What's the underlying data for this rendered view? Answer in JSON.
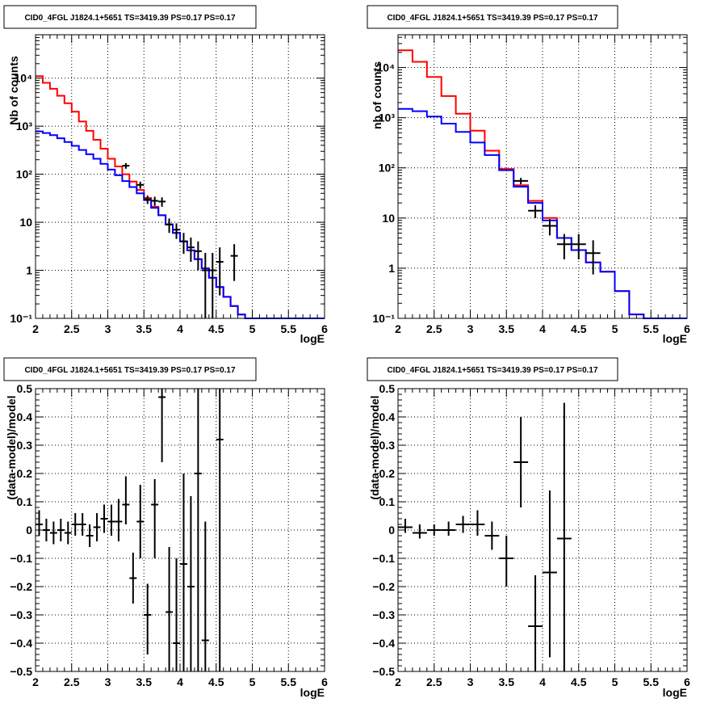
{
  "colors": {
    "model_total": "#ff0000",
    "model_component": "#0000ff",
    "data": "#000000",
    "grid": "#000000"
  },
  "chart_data": [
    {
      "type": "histogram",
      "title": "CID0_4FGL J1824.1+5651 TS=3419.39 PS=0.17 PS=0.17",
      "xlabel": "logE",
      "ylabel": "Nb of counts",
      "xlim": [
        2,
        6
      ],
      "ylim": [
        0.1,
        80000
      ],
      "yscale": "log",
      "grid": true,
      "xticks": [
        "2",
        "2.5",
        "3",
        "3.5",
        "4",
        "4.5",
        "5",
        "5.5",
        "6"
      ],
      "yticks": [
        {
          "value": 0.1,
          "label": "10⁻¹"
        },
        {
          "value": 1,
          "label": "1"
        },
        {
          "value": 10,
          "label": "10"
        },
        {
          "value": 100,
          "label": "10²"
        },
        {
          "value": 1000,
          "label": "10³"
        },
        {
          "value": 10000,
          "label": "10⁴"
        }
      ],
      "bin_edges": [
        2.0,
        2.1,
        2.2,
        2.3,
        2.4,
        2.5,
        2.6,
        2.7,
        2.8,
        2.9,
        3.0,
        3.1,
        3.2,
        3.3,
        3.4,
        3.5,
        3.6,
        3.7,
        3.8,
        3.9,
        4.0,
        4.1,
        4.2,
        4.3,
        4.4,
        4.5,
        4.6,
        4.7,
        4.8,
        4.9,
        5.0,
        5.1,
        5.2,
        5.3,
        5.4,
        5.5,
        5.6,
        5.7,
        5.8,
        5.9,
        6.0
      ],
      "series": [
        {
          "kind": "step",
          "color_key": "model_total",
          "values": [
            11000,
            8000,
            6000,
            4300,
            3000,
            2000,
            1250,
            800,
            520,
            340,
            210,
            145,
            100,
            70,
            47,
            32,
            21,
            14,
            9,
            6,
            4,
            2.6,
            1.7,
            1.1,
            0.7,
            0.45,
            0.28,
            0.18,
            0.12,
            0.1,
            0.1,
            0.1,
            0.1,
            0.1,
            0.1,
            0.1,
            0.1,
            0.1,
            0.1,
            0.1
          ]
        },
        {
          "kind": "step",
          "color_key": "model_component",
          "values": [
            780,
            720,
            650,
            560,
            470,
            390,
            320,
            260,
            210,
            165,
            125,
            95,
            72,
            54,
            40,
            29,
            20,
            14,
            9,
            6,
            4,
            2.6,
            1.7,
            1.1,
            0.7,
            0.45,
            0.28,
            0.18,
            0.12,
            0.1,
            0.1,
            0.1,
            0.1,
            0.1,
            0.1,
            0.1,
            0.1,
            0.1,
            0.1,
            0.1
          ]
        }
      ],
      "points": [
        {
          "x": 3.25,
          "y": 150,
          "xerr": 0.05,
          "ylo": 130,
          "yhi": 170
        },
        {
          "x": 3.45,
          "y": 60,
          "xerr": 0.05,
          "ylo": 50,
          "yhi": 70
        },
        {
          "x": 3.55,
          "y": 30,
          "xerr": 0.05,
          "ylo": 24,
          "yhi": 36
        },
        {
          "x": 3.65,
          "y": 28,
          "xerr": 0.05,
          "ylo": 22,
          "yhi": 34
        },
        {
          "x": 3.75,
          "y": 27,
          "xerr": 0.05,
          "ylo": 21,
          "yhi": 33
        },
        {
          "x": 3.85,
          "y": 9,
          "xerr": 0.05,
          "ylo": 6,
          "yhi": 12
        },
        {
          "x": 3.95,
          "y": 7,
          "xerr": 0.05,
          "ylo": 4.5,
          "yhi": 9.5
        },
        {
          "x": 4.05,
          "y": 4,
          "xerr": 0.05,
          "ylo": 2.2,
          "yhi": 6
        },
        {
          "x": 4.15,
          "y": 3,
          "xerr": 0.05,
          "ylo": 1.5,
          "yhi": 4.8
        },
        {
          "x": 4.25,
          "y": 2.5,
          "xerr": 0.05,
          "ylo": 1.0,
          "yhi": 4.0
        },
        {
          "x": 4.35,
          "y": 1,
          "xerr": 0.05,
          "ylo": 0.1,
          "yhi": 2.3
        },
        {
          "x": 4.45,
          "y": 1,
          "xerr": 0.05,
          "ylo": 0.1,
          "yhi": 2.3
        },
        {
          "x": 4.55,
          "y": 1.5,
          "xerr": 0.05,
          "ylo": 0.3,
          "yhi": 3.0
        },
        {
          "x": 4.75,
          "y": 2,
          "xerr": 0.05,
          "ylo": 0.6,
          "yhi": 3.5
        }
      ]
    },
    {
      "type": "histogram",
      "title": "CID0_4FGL J1824.1+5651 TS=3419.39 PS=0.17 PS=0.17",
      "xlabel": "logE",
      "ylabel": "nb of counts",
      "xlim": [
        2,
        6
      ],
      "ylim": [
        0.1,
        45000
      ],
      "yscale": "log",
      "grid": true,
      "xticks": [
        "2",
        "2.5",
        "3",
        "3.5",
        "4",
        "4.5",
        "5",
        "5.5",
        "6"
      ],
      "yticks": [
        {
          "value": 0.1,
          "label": "10⁻¹"
        },
        {
          "value": 1,
          "label": "1"
        },
        {
          "value": 10,
          "label": "10"
        },
        {
          "value": 100,
          "label": "10²"
        },
        {
          "value": 1000,
          "label": "10³"
        },
        {
          "value": 10000,
          "label": "10⁴"
        }
      ],
      "bin_edges": [
        2.0,
        2.2,
        2.4,
        2.6,
        2.8,
        3.0,
        3.2,
        3.4,
        3.6,
        3.8,
        4.0,
        4.2,
        4.4,
        4.6,
        4.8,
        5.0,
        5.2,
        5.4,
        5.6,
        5.8,
        6.0
      ],
      "series": [
        {
          "kind": "step",
          "color_key": "model_total",
          "values": [
            22000,
            13000,
            6500,
            2700,
            1200,
            550,
            220,
            95,
            45,
            22,
            10,
            4,
            2.3,
            1.3,
            0.85,
            0.35,
            0.12,
            0.1,
            0.1,
            0.1
          ]
        },
        {
          "kind": "step",
          "color_key": "model_component",
          "values": [
            1500,
            1350,
            1050,
            760,
            520,
            320,
            180,
            90,
            42,
            20,
            9,
            4,
            2.3,
            1.3,
            0.85,
            0.35,
            0.12,
            0.1,
            0.1,
            0.1
          ]
        }
      ],
      "points": [
        {
          "x": 3.7,
          "y": 55,
          "xerr": 0.1,
          "ylo": 47,
          "yhi": 63
        },
        {
          "x": 3.9,
          "y": 14,
          "xerr": 0.1,
          "ylo": 10,
          "yhi": 18
        },
        {
          "x": 4.1,
          "y": 7,
          "xerr": 0.1,
          "ylo": 4.5,
          "yhi": 9.5
        },
        {
          "x": 4.3,
          "y": 3,
          "xerr": 0.1,
          "ylo": 1.5,
          "yhi": 4.8
        },
        {
          "x": 4.5,
          "y": 3,
          "xerr": 0.1,
          "ylo": 1.5,
          "yhi": 4.8
        },
        {
          "x": 4.7,
          "y": 2,
          "xerr": 0.1,
          "ylo": 0.75,
          "yhi": 3.6
        }
      ]
    },
    {
      "type": "scatter",
      "title": "CID0_4FGL J1824.1+5651 TS=3419.39 PS=0.17 PS=0.17",
      "xlabel": "logE",
      "ylabel": "(data-model)/model",
      "xlim": [
        2,
        6
      ],
      "ylim": [
        -0.5,
        0.5
      ],
      "yscale": "linear",
      "grid": true,
      "xticks": [
        "2",
        "2.5",
        "3",
        "3.5",
        "4",
        "4.5",
        "5",
        "5.5",
        "6"
      ],
      "yticks": [
        {
          "value": -0.5,
          "label": "−0.5"
        },
        {
          "value": -0.4,
          "label": "−0.4"
        },
        {
          "value": -0.3,
          "label": "−0.3"
        },
        {
          "value": -0.2,
          "label": "−0.2"
        },
        {
          "value": -0.1,
          "label": "−0.1"
        },
        {
          "value": 0,
          "label": "0"
        },
        {
          "value": 0.1,
          "label": "0.1"
        },
        {
          "value": 0.2,
          "label": "0.2"
        },
        {
          "value": 0.3,
          "label": "0.3"
        },
        {
          "value": 0.4,
          "label": "0.4"
        },
        {
          "value": 0.5,
          "label": "0.5"
        }
      ],
      "series": [],
      "points": [
        {
          "x": 2.05,
          "y": 0.02,
          "xerr": 0.05,
          "ylo": -0.02,
          "yhi": 0.07
        },
        {
          "x": 2.15,
          "y": 0.0,
          "xerr": 0.05,
          "ylo": -0.04,
          "yhi": 0.04
        },
        {
          "x": 2.25,
          "y": -0.01,
          "xerr": 0.05,
          "ylo": -0.05,
          "yhi": 0.03
        },
        {
          "x": 2.35,
          "y": 0.0,
          "xerr": 0.05,
          "ylo": -0.04,
          "yhi": 0.04
        },
        {
          "x": 2.45,
          "y": -0.01,
          "xerr": 0.05,
          "ylo": -0.05,
          "yhi": 0.03
        },
        {
          "x": 2.55,
          "y": 0.02,
          "xerr": 0.05,
          "ylo": -0.02,
          "yhi": 0.06
        },
        {
          "x": 2.65,
          "y": 0.02,
          "xerr": 0.05,
          "ylo": -0.02,
          "yhi": 0.06
        },
        {
          "x": 2.75,
          "y": -0.02,
          "xerr": 0.05,
          "ylo": -0.06,
          "yhi": 0.02
        },
        {
          "x": 2.85,
          "y": 0.01,
          "xerr": 0.05,
          "ylo": -0.04,
          "yhi": 0.06
        },
        {
          "x": 2.95,
          "y": 0.04,
          "xerr": 0.05,
          "ylo": -0.01,
          "yhi": 0.09
        },
        {
          "x": 3.05,
          "y": 0.03,
          "xerr": 0.05,
          "ylo": -0.02,
          "yhi": 0.09
        },
        {
          "x": 3.15,
          "y": 0.03,
          "xerr": 0.05,
          "ylo": -0.04,
          "yhi": 0.11
        },
        {
          "x": 3.25,
          "y": 0.09,
          "xerr": 0.05,
          "ylo": 0.02,
          "yhi": 0.19
        },
        {
          "x": 3.35,
          "y": -0.17,
          "xerr": 0.05,
          "ylo": -0.26,
          "yhi": -0.08
        },
        {
          "x": 3.45,
          "y": 0.03,
          "xerr": 0.05,
          "ylo": -0.1,
          "yhi": 0.16
        },
        {
          "x": 3.55,
          "y": -0.3,
          "xerr": 0.05,
          "ylo": -0.44,
          "yhi": -0.19
        },
        {
          "x": 3.65,
          "y": 0.09,
          "xerr": 0.05,
          "ylo": -0.1,
          "yhi": 0.18
        },
        {
          "x": 3.75,
          "y": 0.47,
          "xerr": 0.05,
          "ylo": 0.24,
          "yhi": 0.5
        },
        {
          "x": 3.85,
          "y": -0.29,
          "xerr": 0.05,
          "ylo": -0.5,
          "yhi": -0.06
        },
        {
          "x": 3.95,
          "y": -0.4,
          "xerr": 0.05,
          "ylo": -0.5,
          "yhi": -0.1
        },
        {
          "x": 4.05,
          "y": -0.12,
          "xerr": 0.05,
          "ylo": -0.5,
          "yhi": 0.2
        },
        {
          "x": 4.15,
          "y": -0.2,
          "xerr": 0.05,
          "ylo": -0.5,
          "yhi": 0.12
        },
        {
          "x": 4.25,
          "y": 0.2,
          "xerr": 0.05,
          "ylo": -0.5,
          "yhi": 0.5
        },
        {
          "x": 4.35,
          "y": -0.39,
          "xerr": 0.05,
          "ylo": -0.5,
          "yhi": 0.03
        },
        {
          "x": 4.55,
          "y": 0.32,
          "xerr": 0.05,
          "ylo": -0.5,
          "yhi": 0.5
        }
      ]
    },
    {
      "type": "scatter",
      "title": "CID0_4FGL J1824.1+5651 TS=3419.39 PS=0.17 PS=0.17",
      "xlabel": "logE",
      "ylabel": "(data-model)/model",
      "xlim": [
        2,
        6
      ],
      "ylim": [
        -0.5,
        0.5
      ],
      "yscale": "linear",
      "grid": true,
      "xticks": [
        "2",
        "2.5",
        "3",
        "3.5",
        "4",
        "4.5",
        "5",
        "5.5",
        "6"
      ],
      "yticks": [
        {
          "value": -0.5,
          "label": "−0.5"
        },
        {
          "value": -0.4,
          "label": "−0.4"
        },
        {
          "value": -0.3,
          "label": "−0.3"
        },
        {
          "value": -0.2,
          "label": "−0.2"
        },
        {
          "value": -0.1,
          "label": "−0.1"
        },
        {
          "value": 0,
          "label": "0"
        },
        {
          "value": 0.1,
          "label": "0.1"
        },
        {
          "value": 0.2,
          "label": "0.2"
        },
        {
          "value": 0.3,
          "label": "0.3"
        },
        {
          "value": 0.4,
          "label": "0.4"
        },
        {
          "value": 0.5,
          "label": "0.5"
        }
      ],
      "series": [],
      "points": [
        {
          "x": 2.1,
          "y": 0.01,
          "xerr": 0.1,
          "ylo": -0.01,
          "yhi": 0.04
        },
        {
          "x": 2.3,
          "y": -0.01,
          "xerr": 0.1,
          "ylo": -0.03,
          "yhi": 0.02
        },
        {
          "x": 2.5,
          "y": 0.0,
          "xerr": 0.1,
          "ylo": -0.02,
          "yhi": 0.02
        },
        {
          "x": 2.7,
          "y": 0.0,
          "xerr": 0.1,
          "ylo": -0.02,
          "yhi": 0.03
        },
        {
          "x": 2.9,
          "y": 0.02,
          "xerr": 0.1,
          "ylo": -0.01,
          "yhi": 0.05
        },
        {
          "x": 3.1,
          "y": 0.02,
          "xerr": 0.1,
          "ylo": -0.02,
          "yhi": 0.07
        },
        {
          "x": 3.3,
          "y": -0.02,
          "xerr": 0.1,
          "ylo": -0.07,
          "yhi": 0.03
        },
        {
          "x": 3.5,
          "y": -0.1,
          "xerr": 0.1,
          "ylo": -0.2,
          "yhi": -0.02
        },
        {
          "x": 3.7,
          "y": 0.24,
          "xerr": 0.1,
          "ylo": 0.08,
          "yhi": 0.4
        },
        {
          "x": 3.9,
          "y": -0.34,
          "xerr": 0.1,
          "ylo": -0.5,
          "yhi": -0.16
        },
        {
          "x": 4.1,
          "y": -0.15,
          "xerr": 0.1,
          "ylo": -0.45,
          "yhi": 0.14
        },
        {
          "x": 4.3,
          "y": -0.03,
          "xerr": 0.1,
          "ylo": -0.5,
          "yhi": 0.45
        }
      ]
    }
  ]
}
